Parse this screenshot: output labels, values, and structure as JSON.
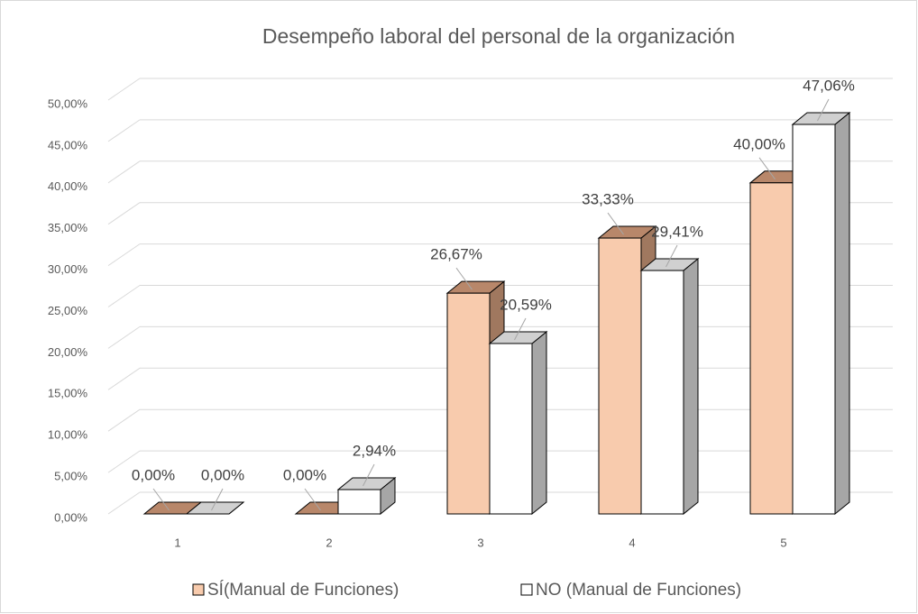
{
  "chart_data": {
    "type": "bar3d",
    "title": "Desempeño laboral del personal de la organización",
    "categories": [
      "1",
      "2",
      "3",
      "4",
      "5"
    ],
    "series": [
      {
        "name": "SÍ(Manual de Funciones)",
        "color": "#f8cbad",
        "values": [
          0,
          0,
          26.67,
          33.33,
          40
        ],
        "value_labels": [
          "0,00%",
          "0,00%",
          "26,67%",
          "33,33%",
          "40,00%"
        ]
      },
      {
        "name": "NO (Manual de Funciones)",
        "color": "#ffffff",
        "values": [
          0,
          2.94,
          20.59,
          29.41,
          47.06
        ],
        "value_labels": [
          "0,00%",
          "2,94%",
          "20,59%",
          "29,41%",
          "47,06%"
        ]
      }
    ],
    "ylim": [
      0,
      50
    ],
    "yticks": [
      {
        "value": 0,
        "label": "0,00%"
      },
      {
        "value": 5,
        "label": "5,00%"
      },
      {
        "value": 10,
        "label": "10,00%"
      },
      {
        "value": 15,
        "label": "15,00%"
      },
      {
        "value": 20,
        "label": "20,00%"
      },
      {
        "value": 25,
        "label": "25,00%"
      },
      {
        "value": 30,
        "label": "30,00%"
      },
      {
        "value": 35,
        "label": "35,00%"
      },
      {
        "value": 40,
        "label": "40,00%"
      },
      {
        "value": 45,
        "label": "45,00%"
      },
      {
        "value": 50,
        "label": "50,00%"
      }
    ],
    "grid": true,
    "legend": "bottom"
  }
}
